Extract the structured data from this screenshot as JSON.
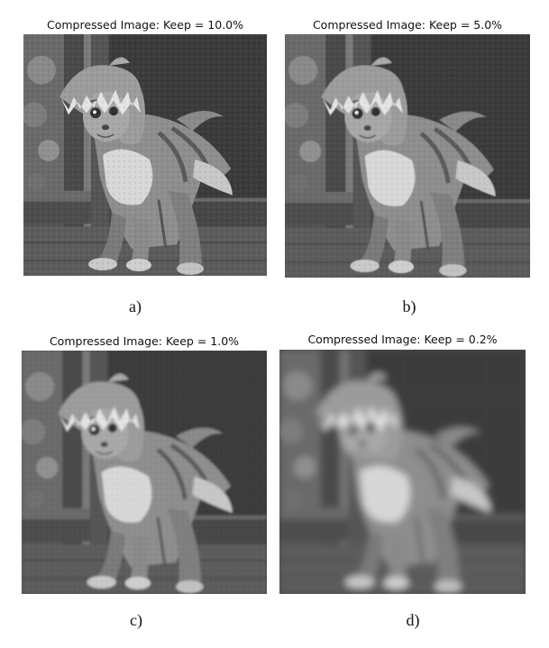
{
  "panels": [
    {
      "id": "a",
      "title": "Compressed Image: Keep = 10.0%",
      "label": "a)",
      "keep_percent": 10.0
    },
    {
      "id": "b",
      "title": "Compressed Image: Keep = 5.0%",
      "label": "b)",
      "keep_percent": 5.0
    },
    {
      "id": "c",
      "title": "Compressed Image: Keep = 1.0%",
      "label": "c)",
      "keep_percent": 1.0
    },
    {
      "id": "d",
      "title": "Compressed Image: Keep = 0.2%",
      "label": "d)",
      "keep_percent": 0.2
    }
  ],
  "image_subject": "grayscale cat in shark costume"
}
